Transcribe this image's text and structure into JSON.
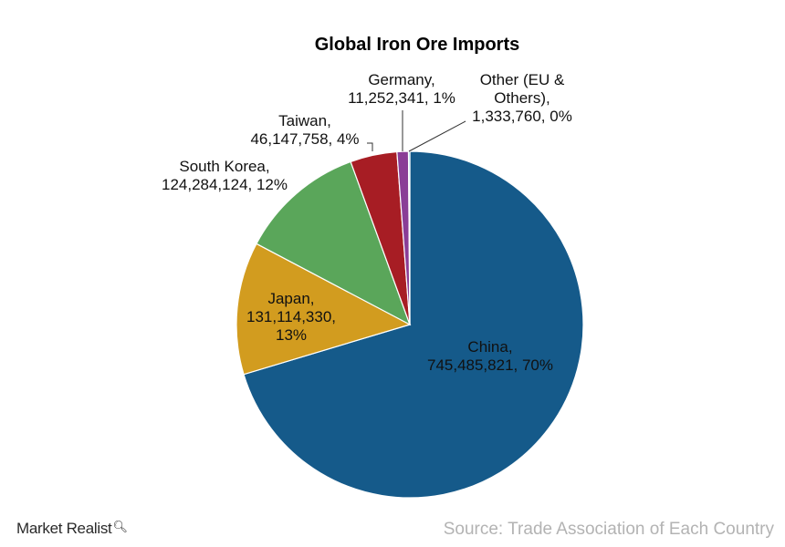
{
  "chart_data": {
    "type": "pie",
    "title": "Global Iron Ore Imports",
    "slices": [
      {
        "label": "China",
        "value": 745485821,
        "value_text": "745,485,821",
        "percent_text": "70%",
        "color": "#155a8a"
      },
      {
        "label": "Japan",
        "value": 131114330,
        "value_text": "131,114,330",
        "percent_text": "13%",
        "color": "#d29c1f"
      },
      {
        "label": "South Korea",
        "value": 124284124,
        "value_text": "124,284,124",
        "percent_text": "12%",
        "color": "#5aa65a"
      },
      {
        "label": "Taiwan",
        "value": 46147758,
        "value_text": "46,147,758",
        "percent_text": "4%",
        "color": "#a71d24"
      },
      {
        "label": "Germany",
        "value": 11252341,
        "value_text": "11,252,341",
        "percent_text": "1%",
        "color": "#8a3d96"
      },
      {
        "label": "Other (EU & Others)",
        "value": 1333760,
        "value_text": "1,333,760",
        "percent_text": "0%",
        "color": "#3ab3d6"
      }
    ]
  },
  "slice_label_lines": [
    [
      "China,",
      "745,485,821, 70%"
    ],
    [
      "Japan,",
      "131,114,330,",
      "13%"
    ],
    [
      "South Korea,",
      "124,284,124, 12%"
    ],
    [
      "Taiwan,",
      "46,147,758, 4%"
    ],
    [
      "Germany,",
      "11,252,341, 1%"
    ],
    [
      "Other (EU &",
      "Others),",
      "1,333,760, 0%"
    ]
  ],
  "footer": {
    "source": "Source: Trade Association of Each Country",
    "brand": "Market Realist",
    "brand_icon": "magnifier-icon"
  }
}
